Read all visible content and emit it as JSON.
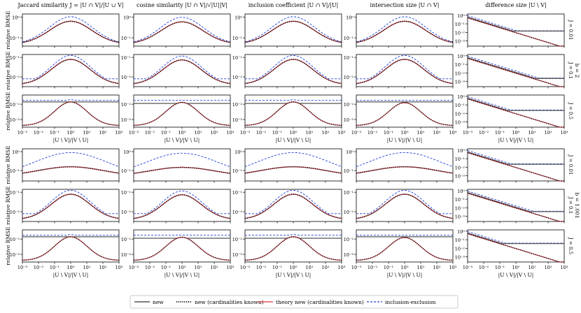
{
  "chart_data": {
    "type": "line",
    "layout": "grid 6 rows x 5 columns",
    "x_scale": "log",
    "y_scale": "log",
    "columns": [
      {
        "title": "Jaccard similarity $J = |U ∩ V|/|U ∪ V|$",
        "xlabel": "|U \\ V|/|V \\ U|"
      },
      {
        "title": "cosine similarity |U ∩ V|/√|U||V|",
        "xlabel": "|U \\ V|/|V \\ U|"
      },
      {
        "title": "inclusion coefficient |U ∩ V|/|U|",
        "xlabel": "|U \\ V|/|V \\ U|"
      },
      {
        "title": "intersection size |U ∩ V|",
        "xlabel": "|U \\ V|/|V \\ U|"
      },
      {
        "title": "difference size |U \\ V|",
        "xlabel": "|U \\ V|/|V \\ U|"
      }
    ],
    "row_groups": [
      {
        "label": "b = 2",
        "rows": [
          "J = 0.01",
          "J = 0.1",
          "J = 0.5"
        ]
      },
      {
        "label": "b = 1.001",
        "rows": [
          "J = 0.01",
          "J = 0.1",
          "J = 0.5"
        ]
      }
    ],
    "ylabel": "relative RMSE",
    "x_ticks": [
      "10⁻³",
      "10⁻²",
      "10⁻¹",
      "10⁰",
      "10¹",
      "10²",
      "10³"
    ],
    "x_range": [
      0.001,
      1000
    ],
    "series": [
      {
        "name": "new",
        "color": "#555555",
        "style": "solid"
      },
      {
        "name": "new (cardinalities known)",
        "color": "#000000",
        "style": "dotted"
      },
      {
        "name": "theory new (cardinalities known)",
        "color": "#e8505b",
        "style": "solid"
      },
      {
        "name": "inclusion-exclusion",
        "color": "#1f3fd8",
        "style": "dashed"
      }
    ],
    "panels": [
      {
        "ylim_exp": [
          -1.4,
          0.15
        ],
        "yticks": [
          0,
          -1
        ],
        "tl": [
          [
            "new_peak",
            0.6
          ],
          [
            "base",
            0.05
          ],
          [
            "ie_peak",
            1.0
          ]
        ]
      }
    ]
  },
  "ui": {
    "col_titles": [
      "Jaccard similarity J = |U ∩ V|/|U ∪ V|",
      "cosine similarity |U ∩ V|/√|U||V|",
      "inclusion coefficient |U ∩ V|/|U|",
      "intersection size |U ∩ V|",
      "difference size |U \\ V|"
    ],
    "row_labels": [
      "J = 0.01",
      "J = 0.1",
      "J = 0.5",
      "J = 0.01",
      "J = 0.1",
      "J = 0.5"
    ],
    "group_labels": [
      "b = 2",
      "b = 1.001"
    ],
    "ylabel": "relative RMSE",
    "xlabel": "|U \\ V|/|V \\ U|",
    "legend": [
      "new",
      "new (cardinalities known)",
      "theory new (cardinalities known)",
      "inclusion-exclusion"
    ]
  }
}
